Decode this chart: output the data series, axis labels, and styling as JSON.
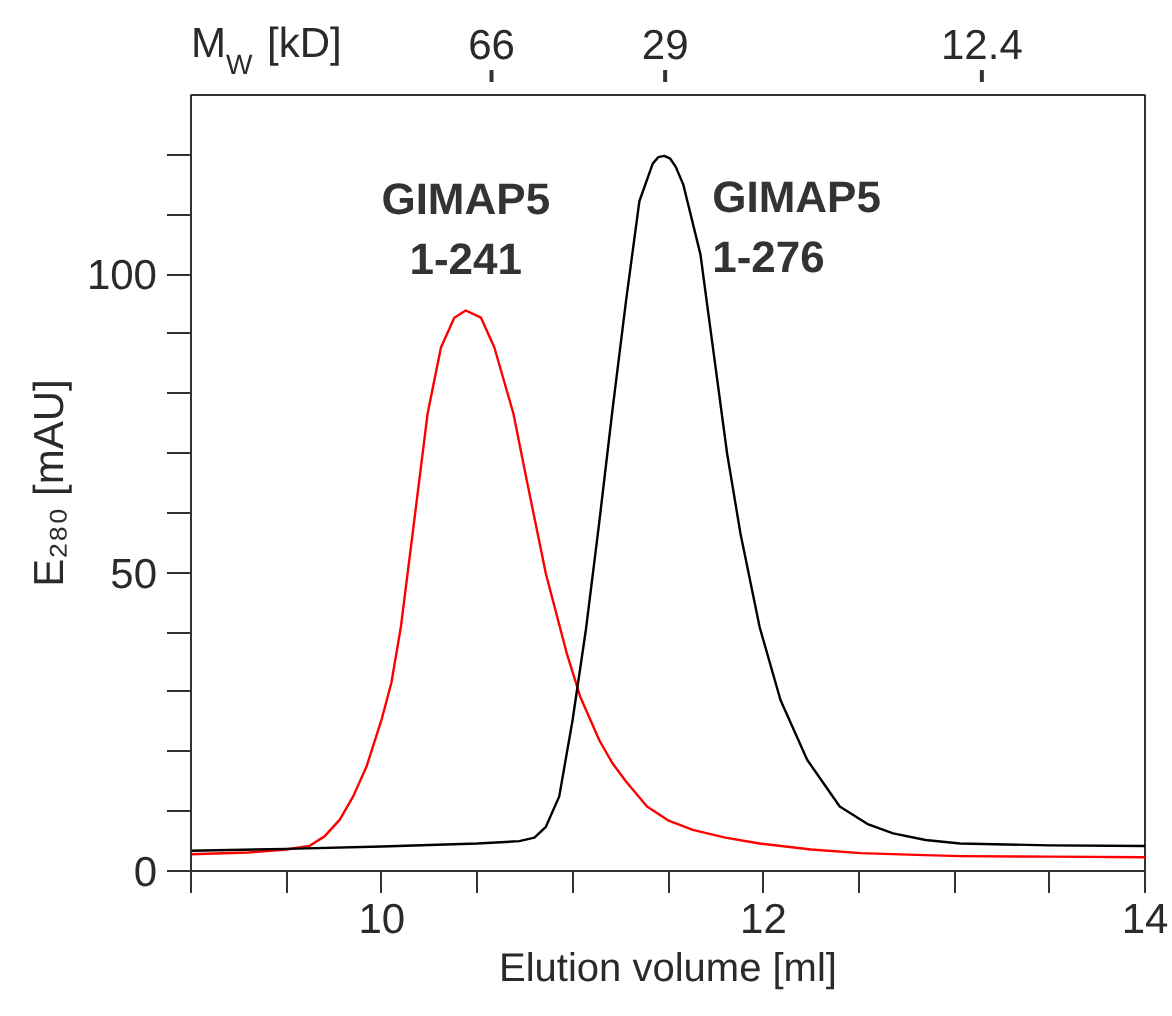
{
  "chart_data": {
    "type": "line",
    "xlabel": "Elution volume [ml]",
    "ylabel": "E₂₈₀ [mAU]",
    "x2label": "M$_{W}$ [kD]",
    "xlim": [
      9,
      14
    ],
    "xticks": [
      {
        "value": 9,
        "label": null
      },
      {
        "value": 9.5,
        "label": null
      },
      10,
      {
        "value": 10.5,
        "label": null
      },
      {
        "value": 11,
        "label": null
      },
      {
        "value": 11.5,
        "label": null
      },
      12,
      {
        "value": 12.5,
        "label": null
      },
      {
        "value": 13,
        "label": null
      },
      {
        "value": 13.5,
        "label": null
      },
      14
    ],
    "ylim": [
      0,
      130
    ],
    "yticks": [
      0,
      {
        "value": 10,
        "label": null
      },
      {
        "value": 20,
        "label": null
      },
      {
        "value": 30,
        "label": null
      },
      {
        "value": 40,
        "label": null
      },
      50,
      {
        "value": 60,
        "label": null
      },
      {
        "value": 70,
        "label": null
      },
      {
        "value": 80,
        "label": null
      },
      {
        "value": 90,
        "label": null
      },
      100,
      {
        "value": 110,
        "label": null
      },
      {
        "value": 120,
        "label": null
      }
    ],
    "annotations": [
      "66",
      "29",
      "12.4"
    ],
    "grid": false,
    "line_style": "solid",
    "series": [
      {
        "name": "GIMAP5\n1-241",
        "color": "#ff0000",
        "x": [
          9.0,
          9.3,
          9.5,
          9.62,
          9.7,
          9.78,
          9.85,
          9.92,
          10.0,
          10.05,
          10.1,
          10.17,
          10.24,
          10.31,
          10.38,
          10.44,
          10.52,
          10.59,
          10.69,
          10.76,
          10.86,
          10.97,
          11.04,
          11.14,
          11.21,
          11.28,
          11.39,
          11.5,
          11.63,
          11.8,
          11.98,
          12.25,
          12.51,
          12.8,
          13.03,
          13.5,
          14.0
        ],
        "values": [
          2.8,
          3.1,
          3.6,
          4.2,
          5.8,
          8.6,
          12.5,
          17.5,
          25.5,
          31.5,
          40.9,
          58.7,
          76.6,
          87.7,
          92.7,
          93.9,
          92.7,
          87.7,
          76.6,
          65.4,
          49.8,
          36.4,
          29.2,
          21.9,
          18.0,
          15.0,
          10.8,
          8.5,
          6.9,
          5.6,
          4.6,
          3.6,
          3.0,
          2.7,
          2.5,
          2.4,
          2.3
        ]
      },
      {
        "name": "GIMAP5\n1-276",
        "color": "#000000",
        "x": [
          9.0,
          9.5,
          10.0,
          10.5,
          10.72,
          10.8,
          10.86,
          10.93,
          11.0,
          11.07,
          11.14,
          11.21,
          11.28,
          11.35,
          11.42,
          11.45,
          11.48,
          11.51,
          11.54,
          11.58,
          11.67,
          11.74,
          11.81,
          11.88,
          11.98,
          12.09,
          12.23,
          12.4,
          12.55,
          12.68,
          12.85,
          13.03,
          13.5,
          14.0
        ],
        "values": [
          3.4,
          3.7,
          4.1,
          4.6,
          5.0,
          5.6,
          7.4,
          12.5,
          25.3,
          40.5,
          58.5,
          77.5,
          95.5,
          112.2,
          118.5,
          119.6,
          119.8,
          119.4,
          118.0,
          115.0,
          103.3,
          86.6,
          69.9,
          56.5,
          40.9,
          28.6,
          18.6,
          10.8,
          7.8,
          6.3,
          5.2,
          4.6,
          4.3,
          4.2
        ]
      }
    ]
  }
}
